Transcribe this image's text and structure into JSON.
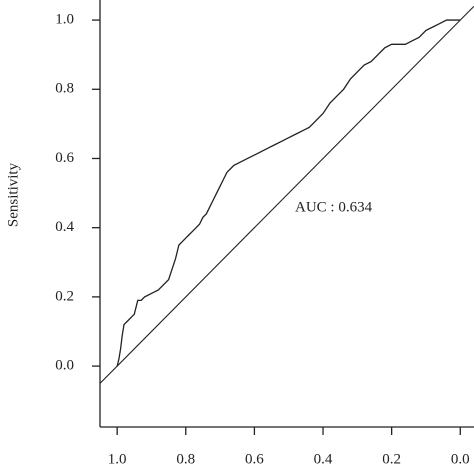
{
  "chart_data": {
    "type": "line",
    "y_label": "Sensitivity",
    "annotation": "AUC : 0.634",
    "xlim": [
      1.05,
      -0.04
    ],
    "ylim": [
      -0.176,
      1.058
    ],
    "xticks": [
      {
        "value": 1.0,
        "label": "1.0"
      },
      0.8,
      0.6,
      0.4,
      0.2,
      {
        "value": 0.0,
        "label": "0.0"
      }
    ],
    "yticks": [
      {
        "value": 0.0,
        "label": "0.0"
      },
      0.2,
      0.4,
      0.6,
      0.8,
      {
        "value": 1.0,
        "label": "1.0"
      }
    ],
    "color": "#222222",
    "reference_line": true,
    "x": [
      1.0,
      0.995,
      0.99,
      0.985,
      0.98,
      0.97,
      0.96,
      0.95,
      0.94,
      0.93,
      0.92,
      0.9,
      0.88,
      0.86,
      0.85,
      0.84,
      0.83,
      0.82,
      0.81,
      0.8,
      0.79,
      0.78,
      0.77,
      0.76,
      0.75,
      0.74,
      0.73,
      0.72,
      0.71,
      0.7,
      0.69,
      0.68,
      0.67,
      0.66,
      0.64,
      0.62,
      0.6,
      0.58,
      0.56,
      0.54,
      0.52,
      0.5,
      0.48,
      0.46,
      0.44,
      0.42,
      0.4,
      0.38,
      0.36,
      0.34,
      0.32,
      0.3,
      0.28,
      0.26,
      0.24,
      0.22,
      0.2,
      0.18,
      0.16,
      0.14,
      0.12,
      0.1,
      0.08,
      0.06,
      0.04,
      0.02,
      0.0
    ],
    "values": [
      0,
      0.02,
      0.05,
      0.09,
      0.12,
      0.13,
      0.14,
      0.15,
      0.19,
      0.19,
      0.2,
      0.21,
      0.22,
      0.24,
      0.25,
      0.28,
      0.31,
      0.35,
      0.36,
      0.37,
      0.38,
      0.39,
      0.4,
      0.41,
      0.43,
      0.44,
      0.46,
      0.48,
      0.5,
      0.52,
      0.54,
      0.56,
      0.57,
      0.58,
      0.59,
      0.6,
      0.61,
      0.62,
      0.63,
      0.64,
      0.65,
      0.66,
      0.67,
      0.68,
      0.69,
      0.71,
      0.73,
      0.76,
      0.78,
      0.8,
      0.83,
      0.85,
      0.87,
      0.88,
      0.9,
      0.92,
      0.93,
      0.93,
      0.93,
      0.94,
      0.95,
      0.97,
      0.98,
      0.99,
      1.0,
      1.0,
      1.0
    ]
  }
}
